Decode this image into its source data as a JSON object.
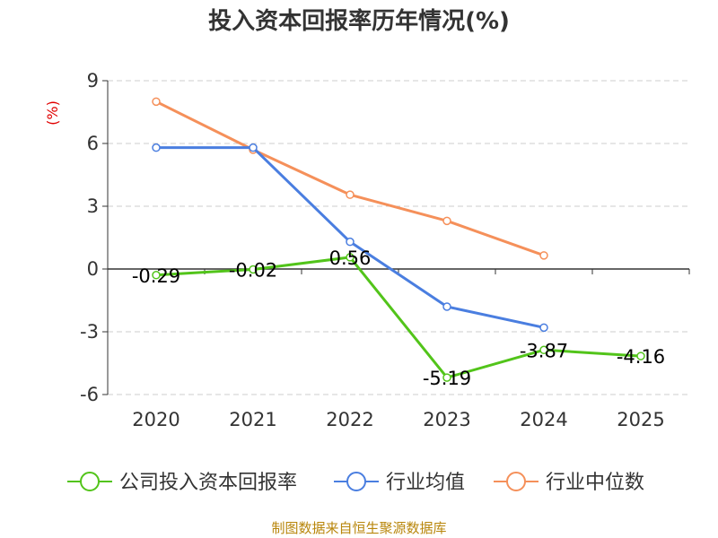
{
  "chart_data": {
    "type": "line",
    "title": "投入资本回报率历年情况(%)",
    "ylabel": "(%)",
    "categories": [
      "2020",
      "2021",
      "2022",
      "2023",
      "2024",
      "2025"
    ],
    "ylim": [
      -6,
      9
    ],
    "yticks": [
      9,
      6,
      3,
      0,
      -3,
      -6
    ],
    "grid": true,
    "legend_position": "bottom",
    "series": [
      {
        "name": "公司投入资本回报率",
        "color": "#52c41a",
        "values": [
          -0.29,
          -0.02,
          0.56,
          -5.19,
          -3.87,
          -4.16
        ],
        "labels": [
          "-0.29",
          "-0.02",
          "0.56",
          "-5.19",
          "-3.87",
          "-4.16"
        ]
      },
      {
        "name": "行业均值",
        "color": "#4a7ee0",
        "values": [
          5.8,
          5.8,
          1.3,
          -1.8,
          -2.8,
          null
        ]
      },
      {
        "name": "行业中位数",
        "color": "#f5905a",
        "values": [
          8.0,
          5.7,
          3.55,
          2.3,
          0.65,
          null
        ]
      }
    ]
  },
  "source": "制图数据来自恒生聚源数据库"
}
